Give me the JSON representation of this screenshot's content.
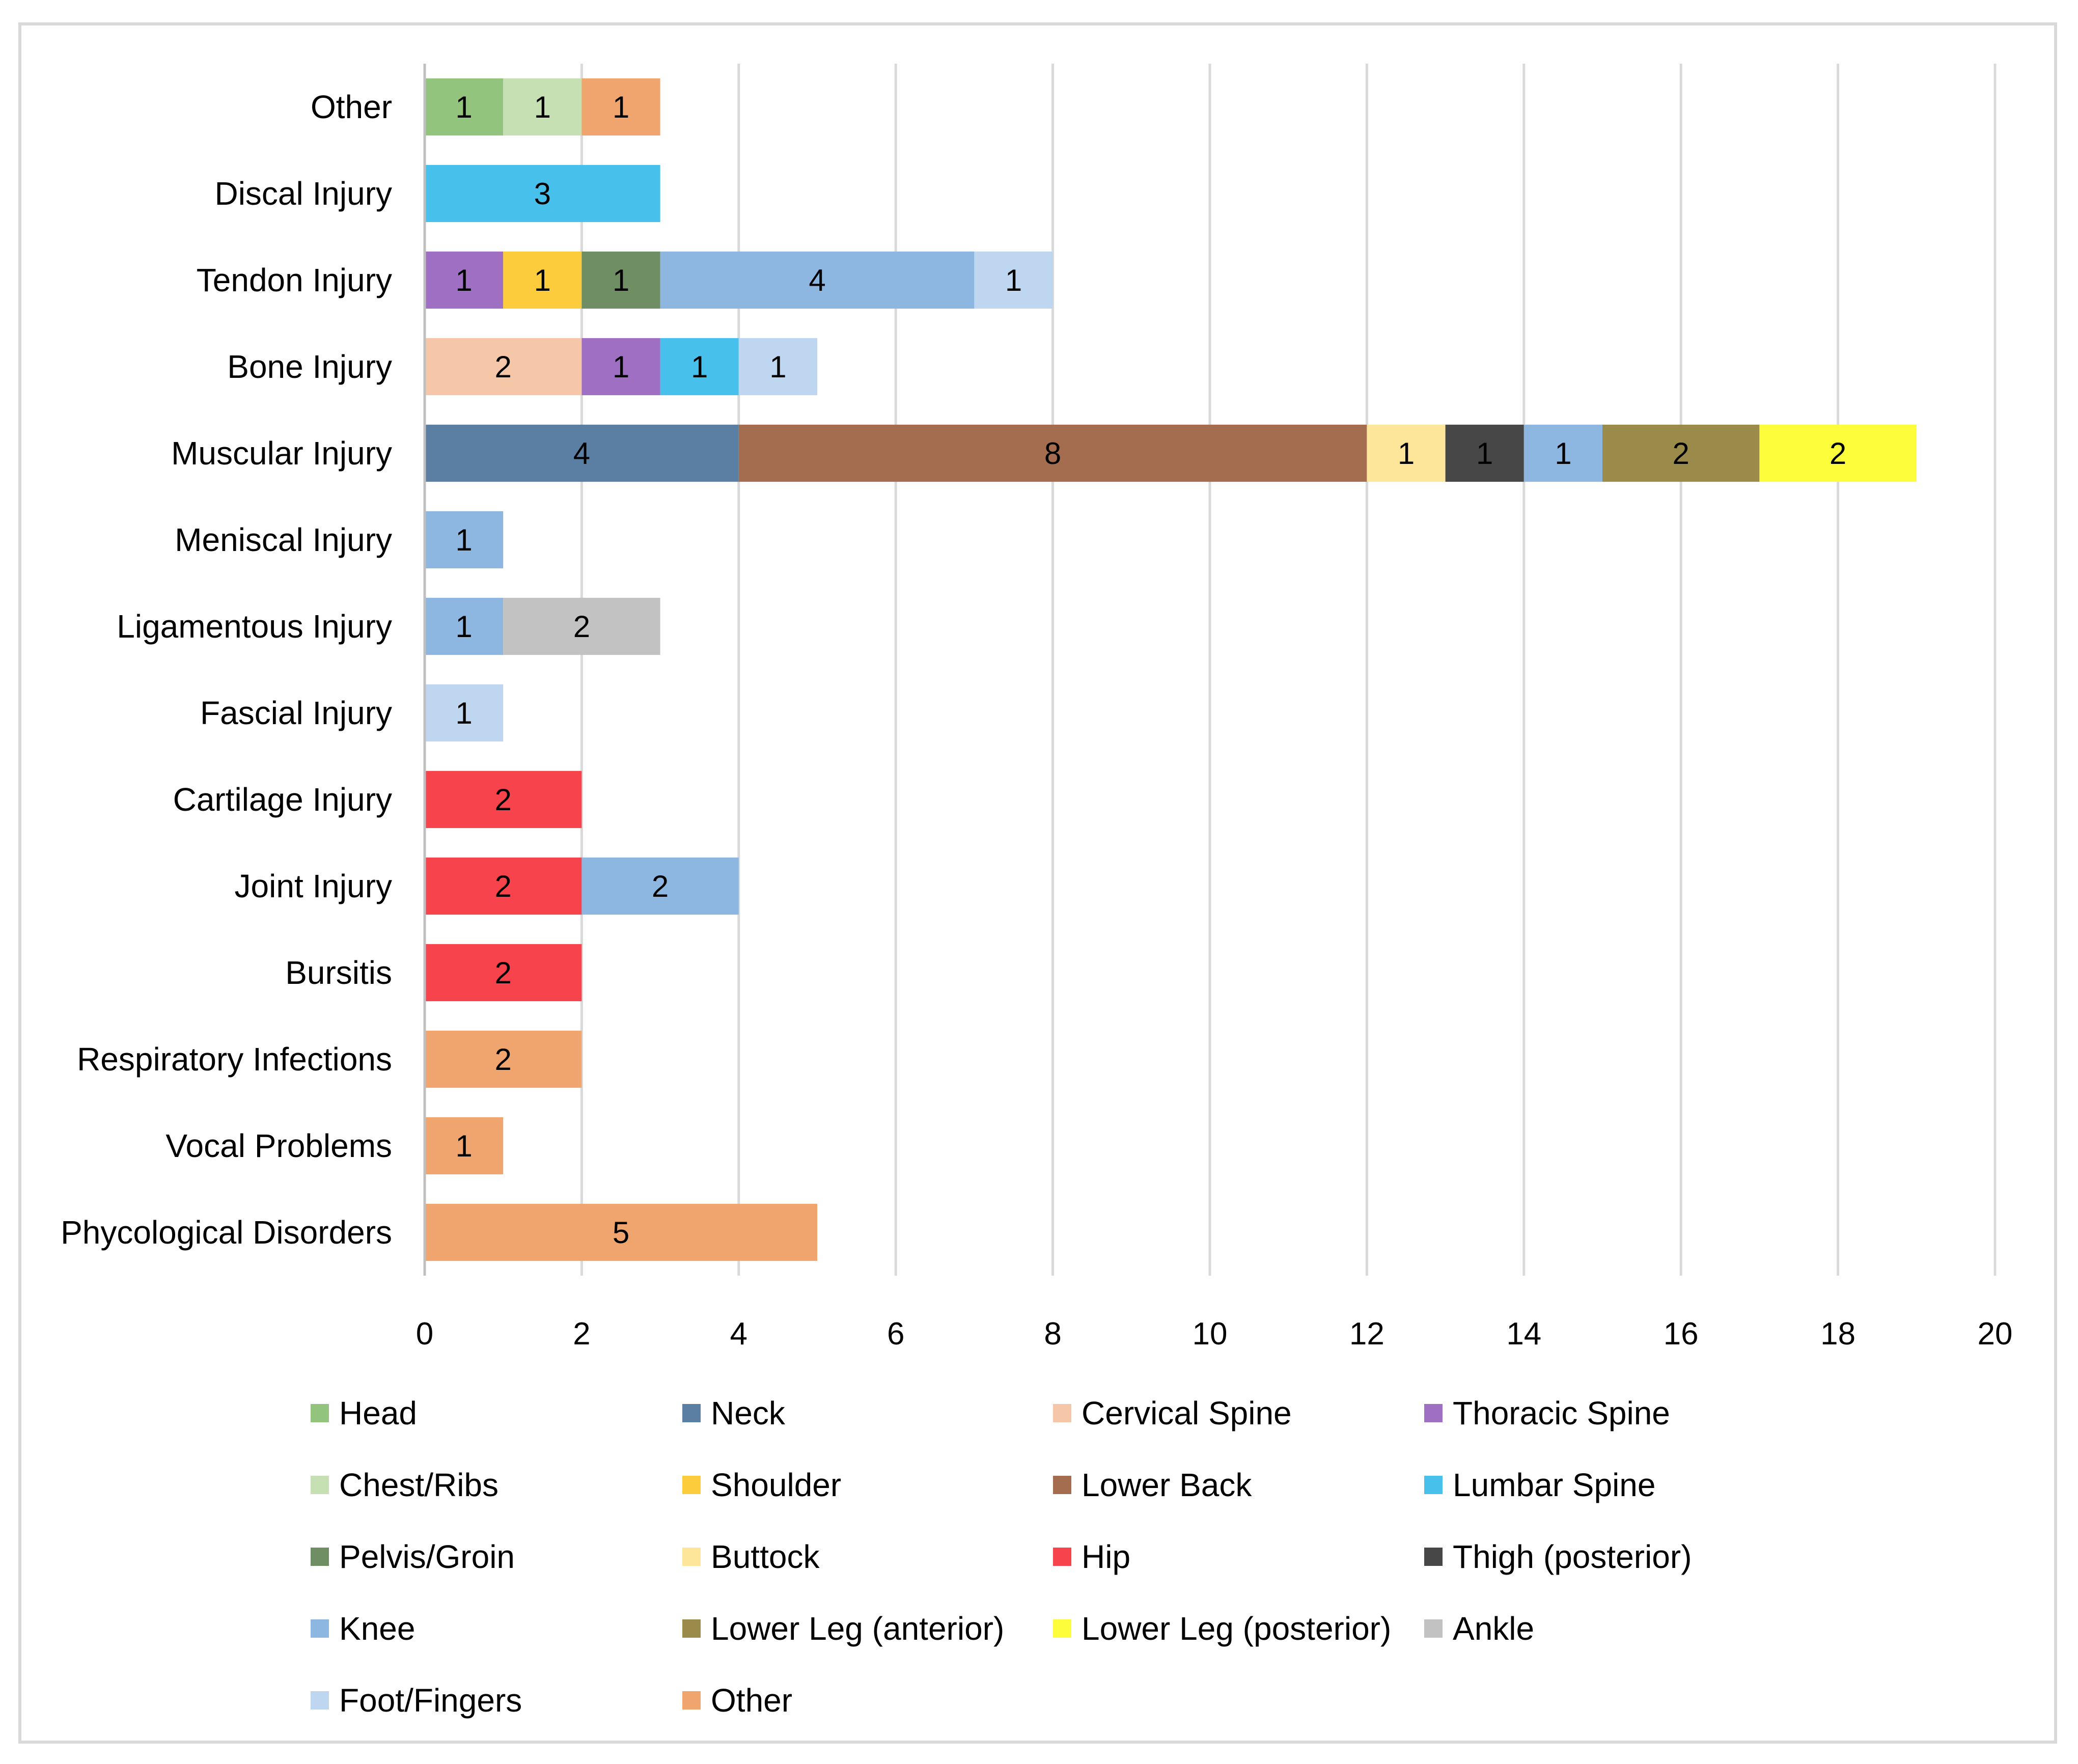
{
  "chart_data": {
    "type": "bar",
    "orientation": "horizontal",
    "stacked": true,
    "title": "",
    "xlabel": "",
    "ylabel": "",
    "xlim": [
      0,
      20
    ],
    "x_ticks": [
      0,
      2,
      4,
      6,
      8,
      10,
      12,
      14,
      16,
      18,
      20
    ],
    "grid": "vertical",
    "legend_position": "bottom",
    "categories": [
      "Other",
      "Discal Injury",
      "Tendon Injury",
      "Bone Injury",
      "Muscular Injury",
      "Meniscal Injury",
      "Ligamentous Injury",
      "Fascial Injury",
      "Cartilage Injury",
      "Joint Injury",
      "Bursitis",
      "Respiratory Infections",
      "Vocal Problems",
      "Phycological Disorders"
    ],
    "series": [
      {
        "name": "Head",
        "color": "#93c47d",
        "values": [
          1,
          0,
          0,
          0,
          0,
          0,
          0,
          0,
          0,
          0,
          0,
          0,
          0,
          0
        ]
      },
      {
        "name": "Neck",
        "color": "#5b7fa3",
        "values": [
          0,
          0,
          0,
          0,
          4,
          0,
          0,
          0,
          0,
          0,
          0,
          0,
          0,
          0
        ]
      },
      {
        "name": "Cervical Spine",
        "color": "#f6c6a8",
        "values": [
          0,
          0,
          0,
          2,
          0,
          0,
          0,
          0,
          0,
          0,
          0,
          0,
          0,
          0
        ]
      },
      {
        "name": "Thoracic Spine",
        "color": "#9e6fc2",
        "values": [
          0,
          0,
          1,
          1,
          0,
          0,
          0,
          0,
          0,
          0,
          0,
          0,
          0,
          0
        ]
      },
      {
        "name": "Chest/Ribs",
        "color": "#c6e0b4",
        "values": [
          1,
          0,
          0,
          0,
          0,
          0,
          0,
          0,
          0,
          0,
          0,
          0,
          0,
          0
        ]
      },
      {
        "name": "Shoulder",
        "color": "#fccc3c",
        "values": [
          0,
          0,
          1,
          0,
          0,
          0,
          0,
          0,
          0,
          0,
          0,
          0,
          0,
          0
        ]
      },
      {
        "name": "Lower Back",
        "color": "#a56d4f",
        "values": [
          0,
          0,
          0,
          0,
          8,
          0,
          0,
          0,
          0,
          0,
          0,
          0,
          0,
          0
        ]
      },
      {
        "name": "Lumbar Spine",
        "color": "#47c1ec",
        "values": [
          0,
          3,
          0,
          1,
          0,
          0,
          0,
          0,
          0,
          0,
          0,
          0,
          0,
          0
        ]
      },
      {
        "name": "Pelvis/Groin",
        "color": "#6f8e64",
        "values": [
          0,
          0,
          1,
          0,
          0,
          0,
          0,
          0,
          0,
          0,
          0,
          0,
          0,
          0
        ]
      },
      {
        "name": "Buttock",
        "color": "#fde69a",
        "values": [
          0,
          0,
          0,
          0,
          1,
          0,
          0,
          0,
          0,
          0,
          0,
          0,
          0,
          0
        ]
      },
      {
        "name": "Hip",
        "color": "#f7434b",
        "values": [
          0,
          0,
          0,
          0,
          0,
          0,
          0,
          0,
          2,
          2,
          2,
          0,
          0,
          0
        ]
      },
      {
        "name": "Thigh (posterior)",
        "color": "#474747",
        "values": [
          0,
          0,
          0,
          0,
          1,
          0,
          0,
          0,
          0,
          0,
          0,
          0,
          0,
          0
        ]
      },
      {
        "name": "Knee",
        "color": "#8db7e0",
        "values": [
          0,
          0,
          4,
          0,
          1,
          1,
          1,
          0,
          0,
          2,
          0,
          0,
          0,
          0
        ]
      },
      {
        "name": "Lower Leg (anterior)",
        "color": "#9a8b4b",
        "values": [
          0,
          0,
          0,
          0,
          2,
          0,
          0,
          0,
          0,
          0,
          0,
          0,
          0,
          0
        ]
      },
      {
        "name": "Lower Leg (posterior)",
        "color": "#fdfd3c",
        "values": [
          0,
          0,
          0,
          0,
          2,
          0,
          0,
          0,
          0,
          0,
          0,
          0,
          0,
          0
        ]
      },
      {
        "name": "Ankle",
        "color": "#c2c2c2",
        "values": [
          0,
          0,
          0,
          0,
          0,
          0,
          2,
          0,
          0,
          0,
          0,
          0,
          0,
          0
        ]
      },
      {
        "name": "Foot/Fingers",
        "color": "#bed6ef",
        "values": [
          0,
          0,
          1,
          1,
          0,
          0,
          0,
          1,
          0,
          0,
          0,
          0,
          0,
          0
        ]
      },
      {
        "name": "Other",
        "color": "#f0a56e",
        "values": [
          1,
          0,
          0,
          0,
          0,
          0,
          0,
          0,
          0,
          0,
          0,
          2,
          1,
          5
        ]
      }
    ]
  }
}
